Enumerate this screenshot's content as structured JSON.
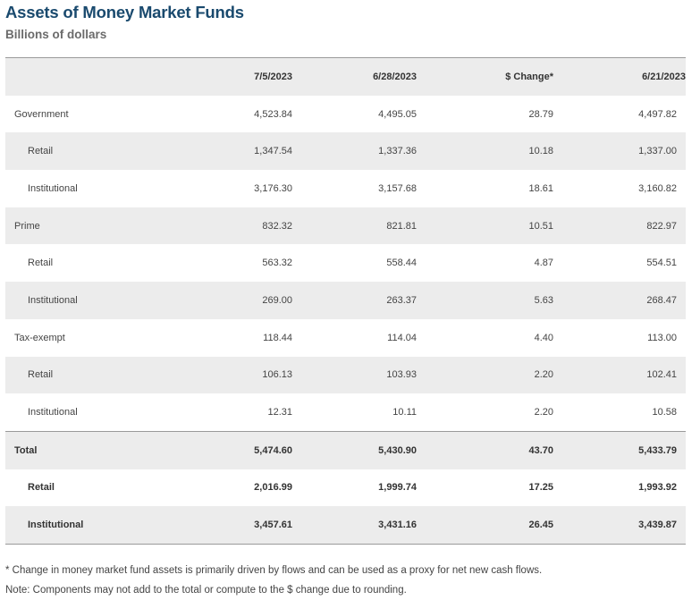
{
  "title": "Assets of Money Market Funds",
  "subtitle": "Billions of dollars",
  "columns": [
    "",
    "7/5/2023",
    "6/28/2023",
    "$ Change*",
    "6/21/2023"
  ],
  "rows": [
    {
      "label": "Government",
      "values": [
        "4,523.84",
        "4,495.05",
        "28.79",
        "4,497.82"
      ]
    },
    {
      "label": "Retail",
      "values": [
        "1,347.54",
        "1,337.36",
        "10.18",
        "1,337.00"
      ]
    },
    {
      "label": "Institutional",
      "values": [
        "3,176.30",
        "3,157.68",
        "18.61",
        "3,160.82"
      ]
    },
    {
      "label": "Prime",
      "values": [
        "832.32",
        "821.81",
        "10.51",
        "822.97"
      ]
    },
    {
      "label": "Retail",
      "values": [
        "563.32",
        "558.44",
        "4.87",
        "554.51"
      ]
    },
    {
      "label": "Institutional",
      "values": [
        "269.00",
        "263.37",
        "5.63",
        "268.47"
      ]
    },
    {
      "label": "Tax-exempt",
      "values": [
        "118.44",
        "114.04",
        "4.40",
        "113.00"
      ]
    },
    {
      "label": "Retail",
      "values": [
        "106.13",
        "103.93",
        "2.20",
        "102.41"
      ]
    },
    {
      "label": "Institutional",
      "values": [
        "12.31",
        "10.11",
        "2.20",
        "10.58"
      ]
    },
    {
      "label": "Total",
      "values": [
        "5,474.60",
        "5,430.90",
        "43.70",
        "5,433.79"
      ]
    },
    {
      "label": "Retail",
      "values": [
        "2,016.99",
        "1,999.74",
        "17.25",
        "1,993.92"
      ]
    },
    {
      "label": "Institutional",
      "values": [
        "3,457.61",
        "3,431.16",
        "26.45",
        "3,439.87"
      ]
    }
  ],
  "notes": [
    "* Change in money market fund assets is primarily driven by flows and can be used as a proxy for net new cash flows.",
    "Note: Components may not add to the total or compute to the $ change due to rounding."
  ],
  "colors": {
    "title": "#1a4a6e",
    "subtitle": "#6b6b6b",
    "stripe": "#ececec",
    "rule": "#9a9a9a"
  }
}
